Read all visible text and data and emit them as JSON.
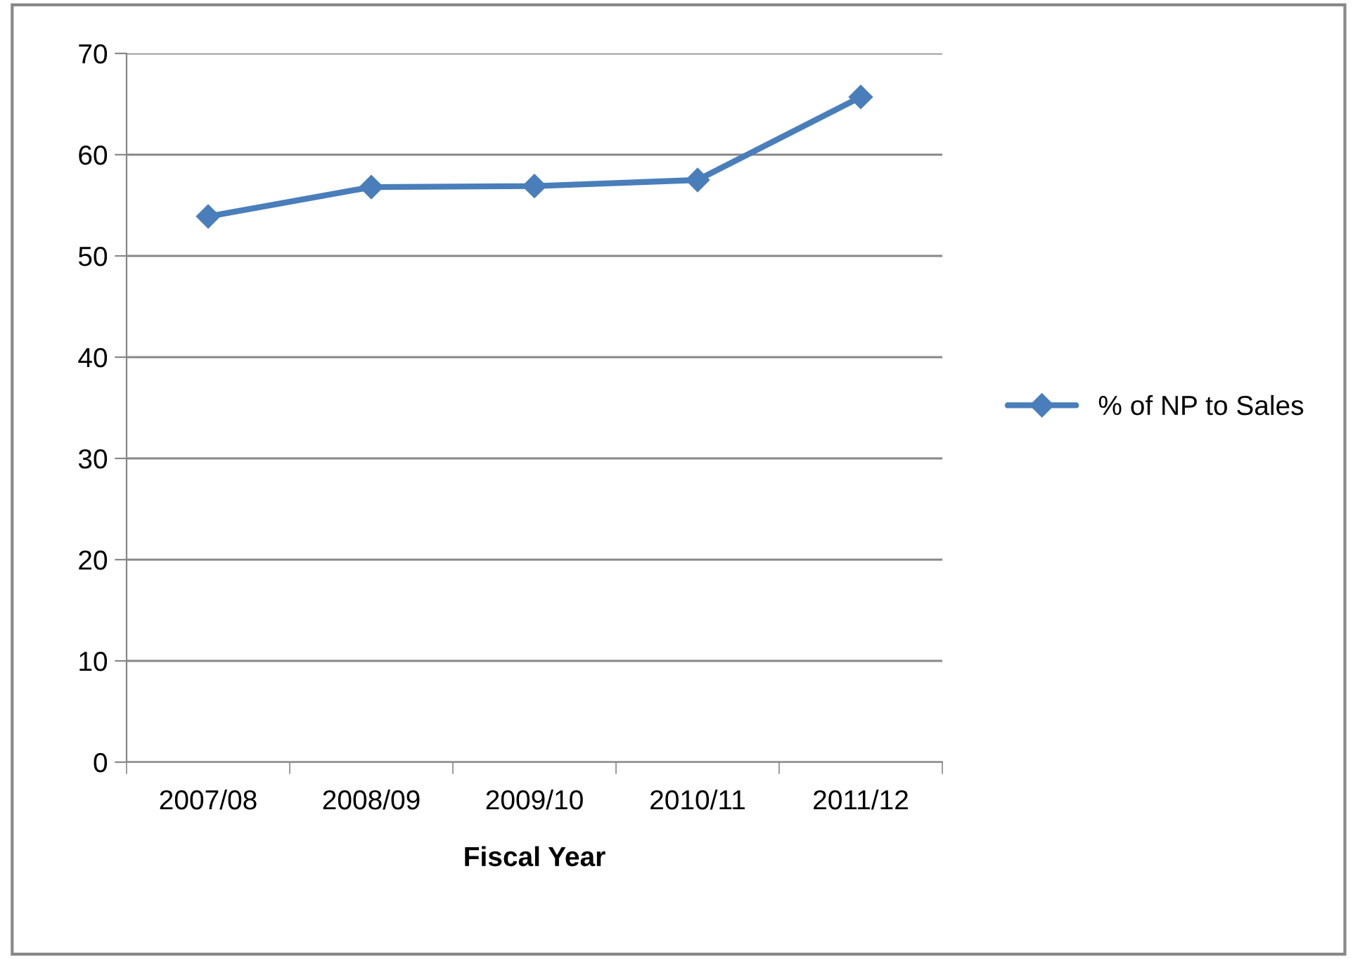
{
  "chart_data": {
    "type": "line",
    "xlabel": "Fiscal Year",
    "categories": [
      "2007/08",
      "2008/09",
      "2009/10",
      "2010/11",
      "2011/12"
    ],
    "series": [
      {
        "name": "% of NP to Sales",
        "color": "#4a7ebb",
        "values": [
          53.9,
          56.8,
          56.9,
          57.5,
          65.7
        ]
      }
    ],
    "ylim": [
      0,
      70
    ],
    "yticks": [
      0,
      10,
      20,
      30,
      40,
      50,
      60,
      70
    ],
    "grid": "y",
    "legend": "right",
    "marker": "diamond",
    "line_style": "solid"
  }
}
